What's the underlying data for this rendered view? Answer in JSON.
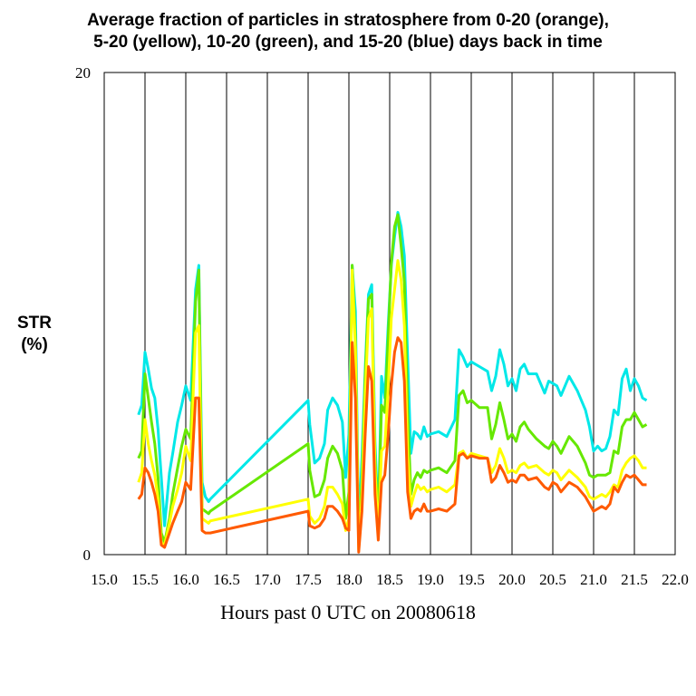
{
  "chart_data": {
    "type": "line",
    "title_lines": [
      "Average fraction of particles in stratosphere from 0-20 (orange),",
      "5-20 (yellow), 10-20 (green), and 15-20 (blue) days back in time"
    ],
    "xlabel": "Hours past 0 UTC on 20080618",
    "ylabel_lines": [
      "STR",
      "(%)"
    ],
    "xlim": [
      15.0,
      22.0
    ],
    "ylim": [
      0,
      20
    ],
    "x_ticks": [
      "15.0",
      "15.5",
      "16.0",
      "16.5",
      "17.0",
      "17.5",
      "18.0",
      "18.5",
      "19.0",
      "19.5",
      "20.0",
      "20.5",
      "21.0",
      "21.5",
      "22.0"
    ],
    "y_ticks": [
      "0",
      "20"
    ],
    "vertical_grid": [
      15.5,
      16.0,
      16.5,
      17.0,
      17.5,
      18.0,
      18.5,
      19.0,
      19.5,
      20.0,
      20.5,
      21.0,
      21.5
    ],
    "x": [
      15.42,
      15.46,
      15.5,
      15.54,
      15.58,
      15.62,
      15.66,
      15.7,
      15.74,
      15.8,
      15.84,
      15.9,
      15.95,
      16.0,
      16.06,
      16.12,
      16.16,
      16.2,
      16.24,
      16.28,
      16.3,
      17.5,
      17.52,
      17.58,
      17.64,
      17.7,
      17.74,
      17.8,
      17.86,
      17.92,
      17.96,
      18.0,
      18.04,
      18.08,
      18.12,
      18.16,
      18.2,
      18.24,
      18.28,
      18.32,
      18.36,
      18.4,
      18.44,
      18.48,
      18.52,
      18.56,
      18.6,
      18.64,
      18.68,
      18.72,
      18.76,
      18.8,
      18.84,
      18.88,
      18.92,
      18.96,
      19.0,
      19.1,
      19.2,
      19.3,
      19.35,
      19.4,
      19.45,
      19.5,
      19.6,
      19.7,
      19.75,
      19.8,
      19.85,
      19.9,
      19.95,
      20.0,
      20.05,
      20.1,
      20.15,
      20.2,
      20.3,
      20.4,
      20.45,
      20.5,
      20.55,
      20.6,
      20.7,
      20.8,
      20.9,
      20.95,
      21.0,
      21.05,
      21.1,
      21.15,
      21.2,
      21.25,
      21.3,
      21.35,
      21.4,
      21.45,
      21.5,
      21.55,
      21.6,
      21.65
    ],
    "series": [
      {
        "color": "#00e8e8",
        "values": [
          5.8,
          6.2,
          8.4,
          7.7,
          6.9,
          6.5,
          5.2,
          3.2,
          1.2,
          3.4,
          4.2,
          5.5,
          6.2,
          7.0,
          6.4,
          11.0,
          12.0,
          3.0,
          2.4,
          2.2,
          2.3,
          6.4,
          5.4,
          3.8,
          4.0,
          4.6,
          6.0,
          6.5,
          6.2,
          5.5,
          3.2,
          5.0,
          12.0,
          10.1,
          1.0,
          4.0,
          7.7,
          10.8,
          11.2,
          4.7,
          1.4,
          7.4,
          6.5,
          9.4,
          12.0,
          13.2,
          14.2,
          13.6,
          12.4,
          8.2,
          4.2,
          5.1,
          5.0,
          4.8,
          5.3,
          4.9,
          5.0,
          5.1,
          4.9,
          5.6,
          8.5,
          8.2,
          7.8,
          8.0,
          7.8,
          7.6,
          6.8,
          7.4,
          8.5,
          7.9,
          7.0,
          7.3,
          6.8,
          7.7,
          7.9,
          7.5,
          7.5,
          6.7,
          7.2,
          7.1,
          7.0,
          6.6,
          7.4,
          6.8,
          6.0,
          5.3,
          4.3,
          4.5,
          4.3,
          4.4,
          4.9,
          6.0,
          5.8,
          7.3,
          7.7,
          6.8,
          7.3,
          7.0,
          6.5,
          6.4
        ]
      },
      {
        "color": "#66e800",
        "values": [
          4.0,
          4.3,
          7.5,
          6.5,
          5.5,
          4.6,
          3.2,
          0.9,
          0.5,
          1.5,
          2.5,
          3.6,
          4.5,
          5.2,
          4.8,
          10.5,
          11.8,
          1.9,
          1.8,
          1.7,
          1.8,
          4.6,
          3.5,
          2.4,
          2.5,
          3.1,
          4.0,
          4.5,
          4.2,
          3.5,
          1.5,
          2.6,
          12.0,
          9.0,
          0.5,
          3.1,
          7.4,
          10.6,
          10.8,
          4.0,
          1.3,
          6.2,
          5.9,
          8.9,
          12.1,
          13.6,
          14.1,
          12.8,
          11.3,
          6.0,
          2.5,
          3.1,
          3.4,
          3.2,
          3.5,
          3.4,
          3.5,
          3.6,
          3.4,
          3.9,
          6.6,
          6.8,
          6.3,
          6.4,
          6.1,
          6.1,
          4.8,
          5.4,
          6.3,
          5.6,
          4.8,
          5.0,
          4.7,
          5.3,
          5.5,
          5.2,
          4.8,
          4.5,
          4.4,
          4.7,
          4.5,
          4.2,
          4.9,
          4.5,
          3.8,
          3.3,
          3.2,
          3.3,
          3.3,
          3.3,
          3.4,
          4.3,
          4.2,
          5.3,
          5.6,
          5.6,
          5.9,
          5.6,
          5.3,
          5.4
        ]
      },
      {
        "color": "#ffff00",
        "values": [
          3.0,
          3.4,
          5.6,
          4.6,
          3.9,
          3.3,
          2.3,
          0.5,
          0.4,
          1.3,
          2.0,
          2.7,
          3.4,
          4.5,
          3.9,
          9.2,
          9.5,
          1.5,
          1.4,
          1.3,
          1.4,
          2.3,
          1.6,
          1.3,
          1.5,
          2.0,
          2.8,
          2.8,
          2.5,
          2.1,
          1.0,
          1.5,
          11.8,
          8.5,
          0.2,
          2.5,
          6.6,
          9.8,
          10.2,
          3.6,
          0.8,
          4.3,
          4.5,
          6.8,
          9.8,
          11.0,
          12.2,
          11.4,
          9.5,
          4.2,
          2.0,
          2.5,
          2.9,
          2.7,
          2.8,
          2.6,
          2.7,
          2.8,
          2.6,
          2.9,
          4.2,
          4.3,
          4.0,
          4.2,
          4.1,
          4.0,
          3.4,
          3.7,
          4.4,
          4.0,
          3.4,
          3.5,
          3.4,
          3.7,
          3.8,
          3.6,
          3.7,
          3.4,
          3.3,
          3.5,
          3.4,
          3.1,
          3.5,
          3.2,
          2.8,
          2.4,
          2.3,
          2.4,
          2.5,
          2.4,
          2.6,
          2.9,
          2.8,
          3.5,
          3.8,
          4.0,
          4.1,
          3.9,
          3.6,
          3.6
        ]
      },
      {
        "color": "#ff5a00",
        "values": [
          2.3,
          2.5,
          3.6,
          3.4,
          3.0,
          2.5,
          1.8,
          0.4,
          0.3,
          0.9,
          1.3,
          1.8,
          2.2,
          3.0,
          2.7,
          6.5,
          6.5,
          1.0,
          0.9,
          0.9,
          0.9,
          1.8,
          1.2,
          1.1,
          1.2,
          1.5,
          2.0,
          2.0,
          1.8,
          1.5,
          1.1,
          1.0,
          8.8,
          6.5,
          0.1,
          1.8,
          5.0,
          7.8,
          7.2,
          2.5,
          0.6,
          3.0,
          3.3,
          4.9,
          7.0,
          8.4,
          9.0,
          8.8,
          7.2,
          2.6,
          1.5,
          1.8,
          1.9,
          1.8,
          2.1,
          1.8,
          1.8,
          1.9,
          1.8,
          2.1,
          4.1,
          4.2,
          4.0,
          4.1,
          4.0,
          4.0,
          3.0,
          3.2,
          3.7,
          3.4,
          3.0,
          3.1,
          3.0,
          3.3,
          3.3,
          3.1,
          3.2,
          2.8,
          2.7,
          3.0,
          2.9,
          2.6,
          3.0,
          2.8,
          2.4,
          2.1,
          1.8,
          1.9,
          2.0,
          1.9,
          2.1,
          2.8,
          2.6,
          3.0,
          3.3,
          3.2,
          3.3,
          3.1,
          2.9,
          2.9
        ]
      }
    ]
  }
}
